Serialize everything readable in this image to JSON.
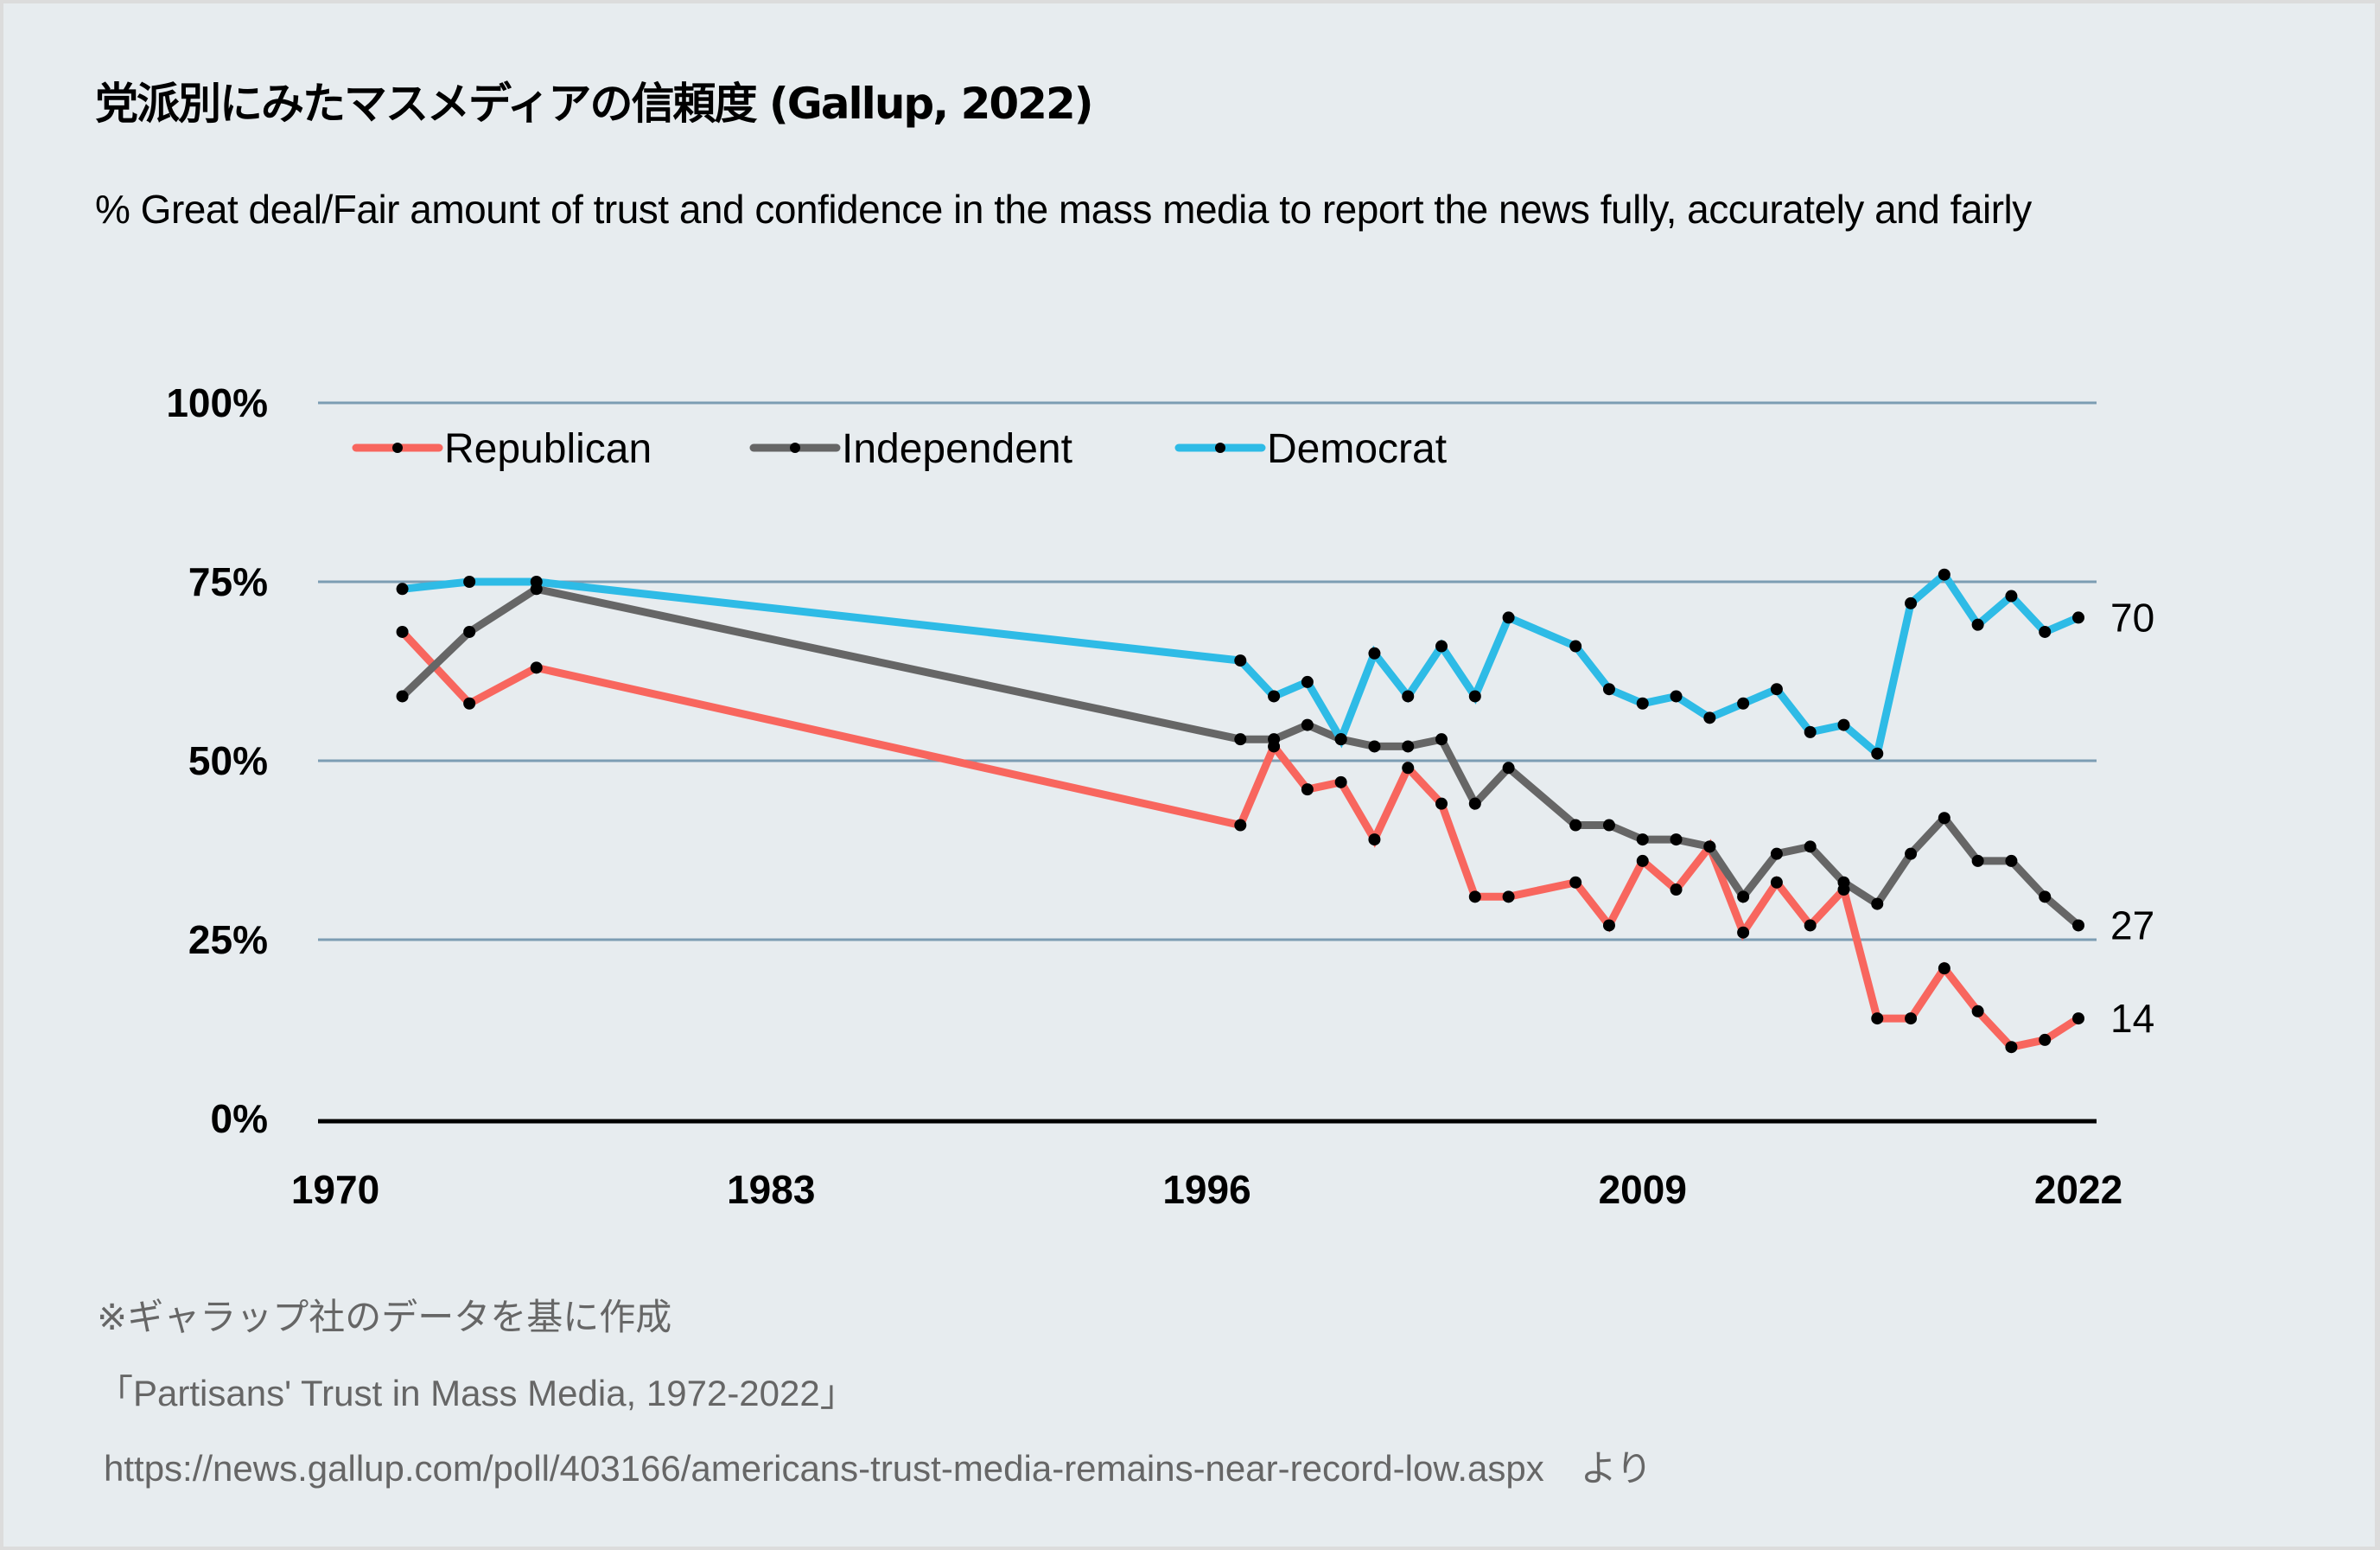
{
  "title": "党派別にみたマスメディアの信頼度 (Gallup, 2022)",
  "subtitle": "% Great deal/Fair amount of trust and confidence in the mass media to report the news fully, accurately and fairly",
  "footer": {
    "note": "※ギャラップ社のデータを基に作成",
    "source_title": "「Partisans' Trust in Mass Media, 1972-2022」",
    "source_url_line": "https://news.gallup.com/poll/403166/americans-trust-media-remains-near-record-low.aspx　より"
  },
  "chart_data": {
    "type": "line",
    "title": "党派別にみたマスメディアの信頼度 (Gallup, 2022)",
    "subtitle": "% Great deal/Fair amount of trust and confidence in the mass media to report the news fully, accurately and fairly",
    "xlabel": "",
    "ylabel": "",
    "xlim": [
      1970,
      2022
    ],
    "ylim": [
      0,
      100
    ],
    "x_ticks": [
      "1970",
      "1983",
      "1996",
      "2009",
      "2022"
    ],
    "x_tick_values": [
      1970,
      1983,
      1996,
      2009,
      2022
    ],
    "y_ticks": [
      "0%",
      "25%",
      "50%",
      "75%",
      "100%"
    ],
    "y_tick_values": [
      0,
      25,
      50,
      75,
      100
    ],
    "grid": "horizontal",
    "legend_position": "top-left",
    "x": [
      1972,
      1974,
      1976,
      1997,
      1998,
      1999,
      2000,
      2001,
      2002,
      2003,
      2004,
      2005,
      2007,
      2008,
      2009,
      2010,
      2011,
      2012,
      2013,
      2014,
      2015,
      2016,
      2017,
      2018,
      2019,
      2020,
      2021,
      2022
    ],
    "series": [
      {
        "name": "Republican",
        "color": "#f8665e",
        "values": [
          68,
          58,
          63,
          41,
          52,
          46,
          47,
          39,
          49,
          44,
          31,
          31,
          33,
          27,
          36,
          32,
          38,
          26,
          33,
          27,
          32,
          14,
          14,
          21,
          15,
          10,
          11,
          14
        ],
        "end_label": "14"
      },
      {
        "name": "Independent",
        "color": "#666666",
        "values": [
          59,
          68,
          74,
          53,
          53,
          55,
          53,
          52,
          52,
          53,
          44,
          49,
          41,
          41,
          39,
          39,
          38,
          31,
          37,
          38,
          33,
          30,
          37,
          42,
          36,
          36,
          31,
          27
        ],
        "end_label": "27"
      },
      {
        "name": "Democrat",
        "color": "#2ebbe6",
        "values": [
          74,
          75,
          75,
          64,
          59,
          61,
          53,
          65,
          59,
          66,
          59,
          70,
          66,
          60,
          58,
          59,
          56,
          58,
          60,
          54,
          55,
          51,
          72,
          76,
          69,
          73,
          68,
          70
        ],
        "end_label": "70"
      }
    ],
    "marker_color": "#000000",
    "grid_color": "#7c9db3",
    "axis_color": "#000000"
  }
}
